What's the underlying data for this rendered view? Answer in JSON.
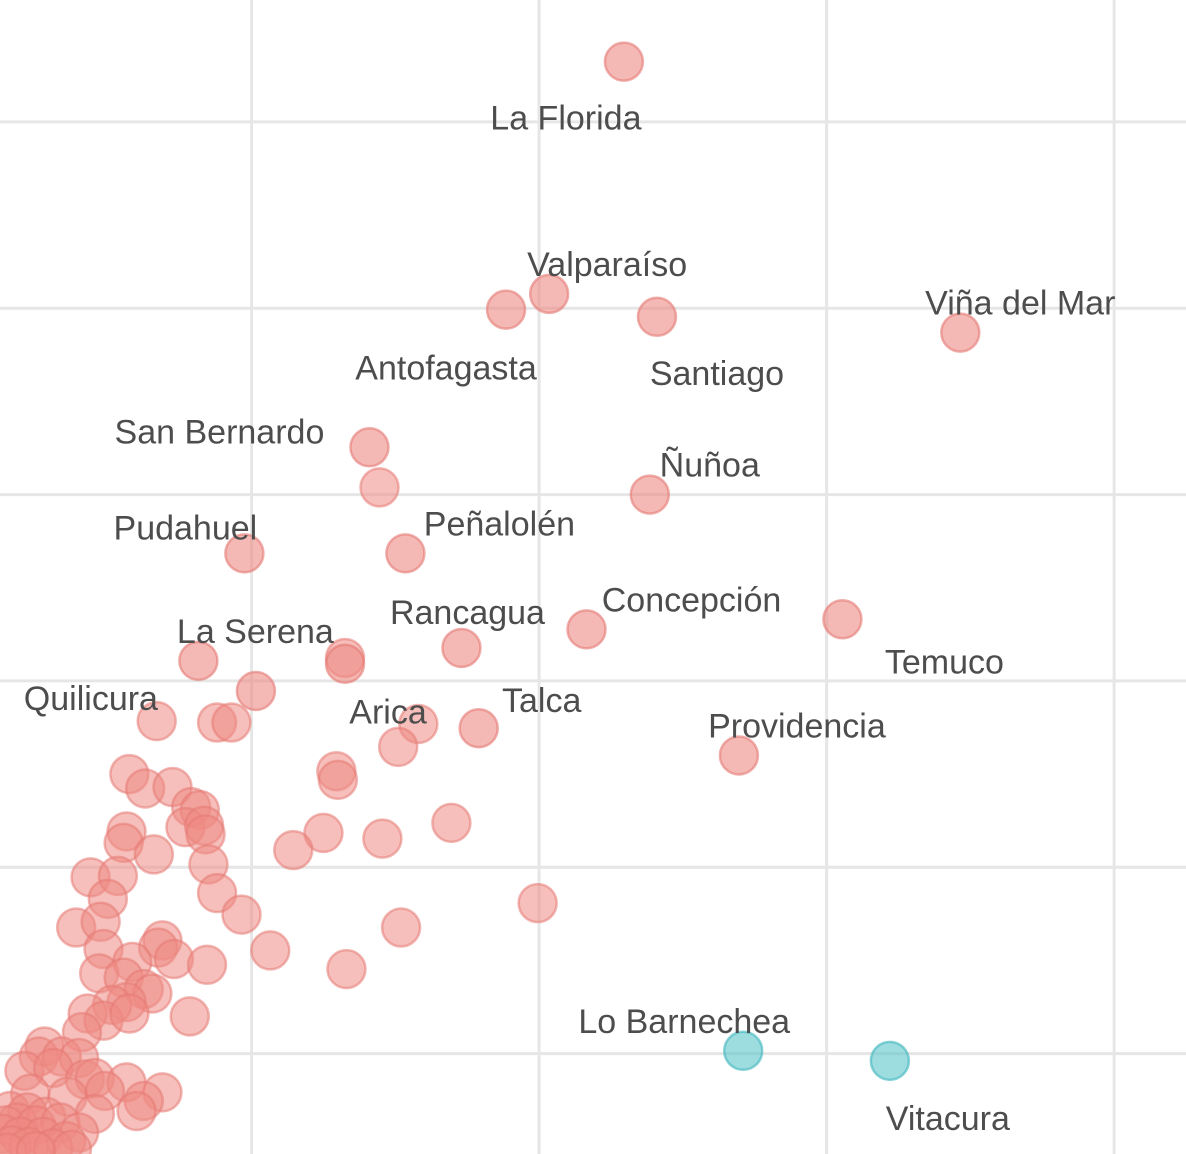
{
  "chart_data": {
    "type": "scatter",
    "title": "",
    "xlabel": "",
    "ylabel": "",
    "grid": true,
    "legend": "none",
    "xlim": [
      0,
      8.25
    ],
    "ylim": [
      0,
      8.05
    ],
    "xgrid": [
      1.75,
      3.75,
      5.75,
      7.75
    ],
    "ygrid": [
      0.7,
      2.0,
      3.3,
      4.6,
      5.9,
      7.2
    ],
    "colors": {
      "groupA": "#ee8a84",
      "groupB": "#5cc7cc",
      "grid": "#e6e6e6",
      "label": "#4d4d4d"
    },
    "labeled_points": [
      {
        "label": "La Florida",
        "x": 4.34,
        "y": 7.62,
        "group": "groupA"
      },
      {
        "label": "Valparaíso",
        "x": 3.82,
        "y": 6.0,
        "group": "groupA"
      },
      {
        "label": "Antofagasta",
        "x": 3.52,
        "y": 5.89,
        "group": "groupA"
      },
      {
        "label": "Santiago",
        "x": 4.57,
        "y": 5.84,
        "group": "groupA"
      },
      {
        "label": "Viña del Mar",
        "x": 6.68,
        "y": 5.73,
        "group": "groupA"
      },
      {
        "label": "San Bernardo",
        "x": 2.57,
        "y": 4.93,
        "group": "groupA"
      },
      {
        "label": "Ñuñoa",
        "x": 4.52,
        "y": 4.6,
        "group": "groupA"
      },
      {
        "label": "Peñalolén",
        "x": 2.82,
        "y": 4.19,
        "group": "groupA"
      },
      {
        "label": "Pudahuel",
        "x": 1.7,
        "y": 4.19,
        "group": "groupA"
      },
      {
        "label": "Concepción",
        "x": 4.08,
        "y": 3.66,
        "group": "groupA"
      },
      {
        "label": "Temuco",
        "x": 5.86,
        "y": 3.73,
        "group": "groupA"
      },
      {
        "label": "Rancagua",
        "x": 3.21,
        "y": 3.53,
        "group": "groupA"
      },
      {
        "label": "La Serena",
        "x": 1.38,
        "y": 3.44,
        "group": "groupA"
      },
      {
        "label": "Arica",
        "x": 2.4,
        "y": 3.42,
        "group": "groupA"
      },
      {
        "label": "Quilicura",
        "x": 1.78,
        "y": 3.23,
        "group": "groupA"
      },
      {
        "label": "Talca",
        "x": 3.33,
        "y": 2.97,
        "group": "groupA"
      },
      {
        "label": "Providencia",
        "x": 5.14,
        "y": 2.78,
        "group": "groupA"
      },
      {
        "label": "Lo Barnechea",
        "x": 5.17,
        "y": 0.72,
        "group": "groupB"
      },
      {
        "label": "Vitacura",
        "x": 6.19,
        "y": 0.65,
        "group": "groupB"
      }
    ],
    "points": [
      {
        "x": 2.64,
        "y": 4.65
      },
      {
        "x": 2.4,
        "y": 3.46
      },
      {
        "x": 1.09,
        "y": 3.02
      },
      {
        "x": 1.51,
        "y": 3.01
      },
      {
        "x": 1.61,
        "y": 3.01
      },
      {
        "x": 2.91,
        "y": 3.0
      },
      {
        "x": 2.77,
        "y": 2.84
      },
      {
        "x": 2.34,
        "y": 2.67
      },
      {
        "x": 2.35,
        "y": 2.61
      },
      {
        "x": 0.9,
        "y": 2.65
      },
      {
        "x": 1.01,
        "y": 2.55
      },
      {
        "x": 1.2,
        "y": 2.56
      },
      {
        "x": 1.33,
        "y": 2.42
      },
      {
        "x": 1.39,
        "y": 2.4
      },
      {
        "x": 3.14,
        "y": 2.31
      },
      {
        "x": 0.88,
        "y": 2.25
      },
      {
        "x": 0.86,
        "y": 2.17
      },
      {
        "x": 1.29,
        "y": 2.28
      },
      {
        "x": 1.42,
        "y": 2.29
      },
      {
        "x": 1.43,
        "y": 2.23
      },
      {
        "x": 2.25,
        "y": 2.24
      },
      {
        "x": 2.66,
        "y": 2.2
      },
      {
        "x": 1.07,
        "y": 2.09
      },
      {
        "x": 2.04,
        "y": 2.12
      },
      {
        "x": 1.45,
        "y": 2.02
      },
      {
        "x": 0.63,
        "y": 1.93
      },
      {
        "x": 0.82,
        "y": 1.94
      },
      {
        "x": 1.51,
        "y": 1.82
      },
      {
        "x": 0.75,
        "y": 1.78
      },
      {
        "x": 3.74,
        "y": 1.75
      },
      {
        "x": 1.68,
        "y": 1.67
      },
      {
        "x": 0.53,
        "y": 1.58
      },
      {
        "x": 0.7,
        "y": 1.62
      },
      {
        "x": 2.79,
        "y": 1.58
      },
      {
        "x": 1.13,
        "y": 1.49
      },
      {
        "x": 0.72,
        "y": 1.43
      },
      {
        "x": 1.88,
        "y": 1.42
      },
      {
        "x": 1.1,
        "y": 1.44
      },
      {
        "x": 0.92,
        "y": 1.34
      },
      {
        "x": 1.21,
        "y": 1.36
      },
      {
        "x": 1.44,
        "y": 1.32
      },
      {
        "x": 0.69,
        "y": 1.26
      },
      {
        "x": 2.41,
        "y": 1.29
      },
      {
        "x": 0.86,
        "y": 1.23
      },
      {
        "x": 1.0,
        "y": 1.15
      },
      {
        "x": 1.06,
        "y": 1.12
      },
      {
        "x": 0.88,
        "y": 1.06
      },
      {
        "x": 0.78,
        "y": 1.04
      },
      {
        "x": 0.61,
        "y": 0.98
      },
      {
        "x": 1.32,
        "y": 0.96
      },
      {
        "x": 0.72,
        "y": 0.93
      },
      {
        "x": 0.9,
        "y": 0.98
      },
      {
        "x": 0.57,
        "y": 0.85
      },
      {
        "x": 0.31,
        "y": 0.75
      },
      {
        "x": 0.27,
        "y": 0.68
      },
      {
        "x": 0.43,
        "y": 0.68
      },
      {
        "x": 0.55,
        "y": 0.67
      },
      {
        "x": 0.17,
        "y": 0.58
      },
      {
        "x": 0.37,
        "y": 0.6
      },
      {
        "x": 0.59,
        "y": 0.52
      },
      {
        "x": 0.66,
        "y": 0.53
      },
      {
        "x": 0.88,
        "y": 0.5
      },
      {
        "x": 0.73,
        "y": 0.44
      },
      {
        "x": 1.13,
        "y": 0.43
      },
      {
        "x": 0.21,
        "y": 0.42
      },
      {
        "x": 0.47,
        "y": 0.4
      },
      {
        "x": 1.0,
        "y": 0.37
      },
      {
        "x": 0.95,
        "y": 0.3
      },
      {
        "x": 0.66,
        "y": 0.28
      },
      {
        "x": 0.07,
        "y": 0.3
      },
      {
        "x": 0.19,
        "y": 0.29
      },
      {
        "x": 0.32,
        "y": 0.26
      },
      {
        "x": 0.12,
        "y": 0.22
      },
      {
        "x": 0.04,
        "y": 0.2
      },
      {
        "x": 0.25,
        "y": 0.2
      },
      {
        "x": 0.42,
        "y": 0.22
      },
      {
        "x": 0.55,
        "y": 0.15
      },
      {
        "x": 0.02,
        "y": 0.14
      },
      {
        "x": 0.14,
        "y": 0.12
      },
      {
        "x": 0.3,
        "y": 0.12
      },
      {
        "x": 0.46,
        "y": 0.09
      },
      {
        "x": 0.08,
        "y": 0.06
      },
      {
        "x": 0.2,
        "y": 0.05
      },
      {
        "x": 0.37,
        "y": 0.04
      },
      {
        "x": 0.5,
        "y": 0.03
      },
      {
        "x": 0.05,
        "y": 0.01
      },
      {
        "x": 0.25,
        "y": 0.02
      }
    ]
  }
}
